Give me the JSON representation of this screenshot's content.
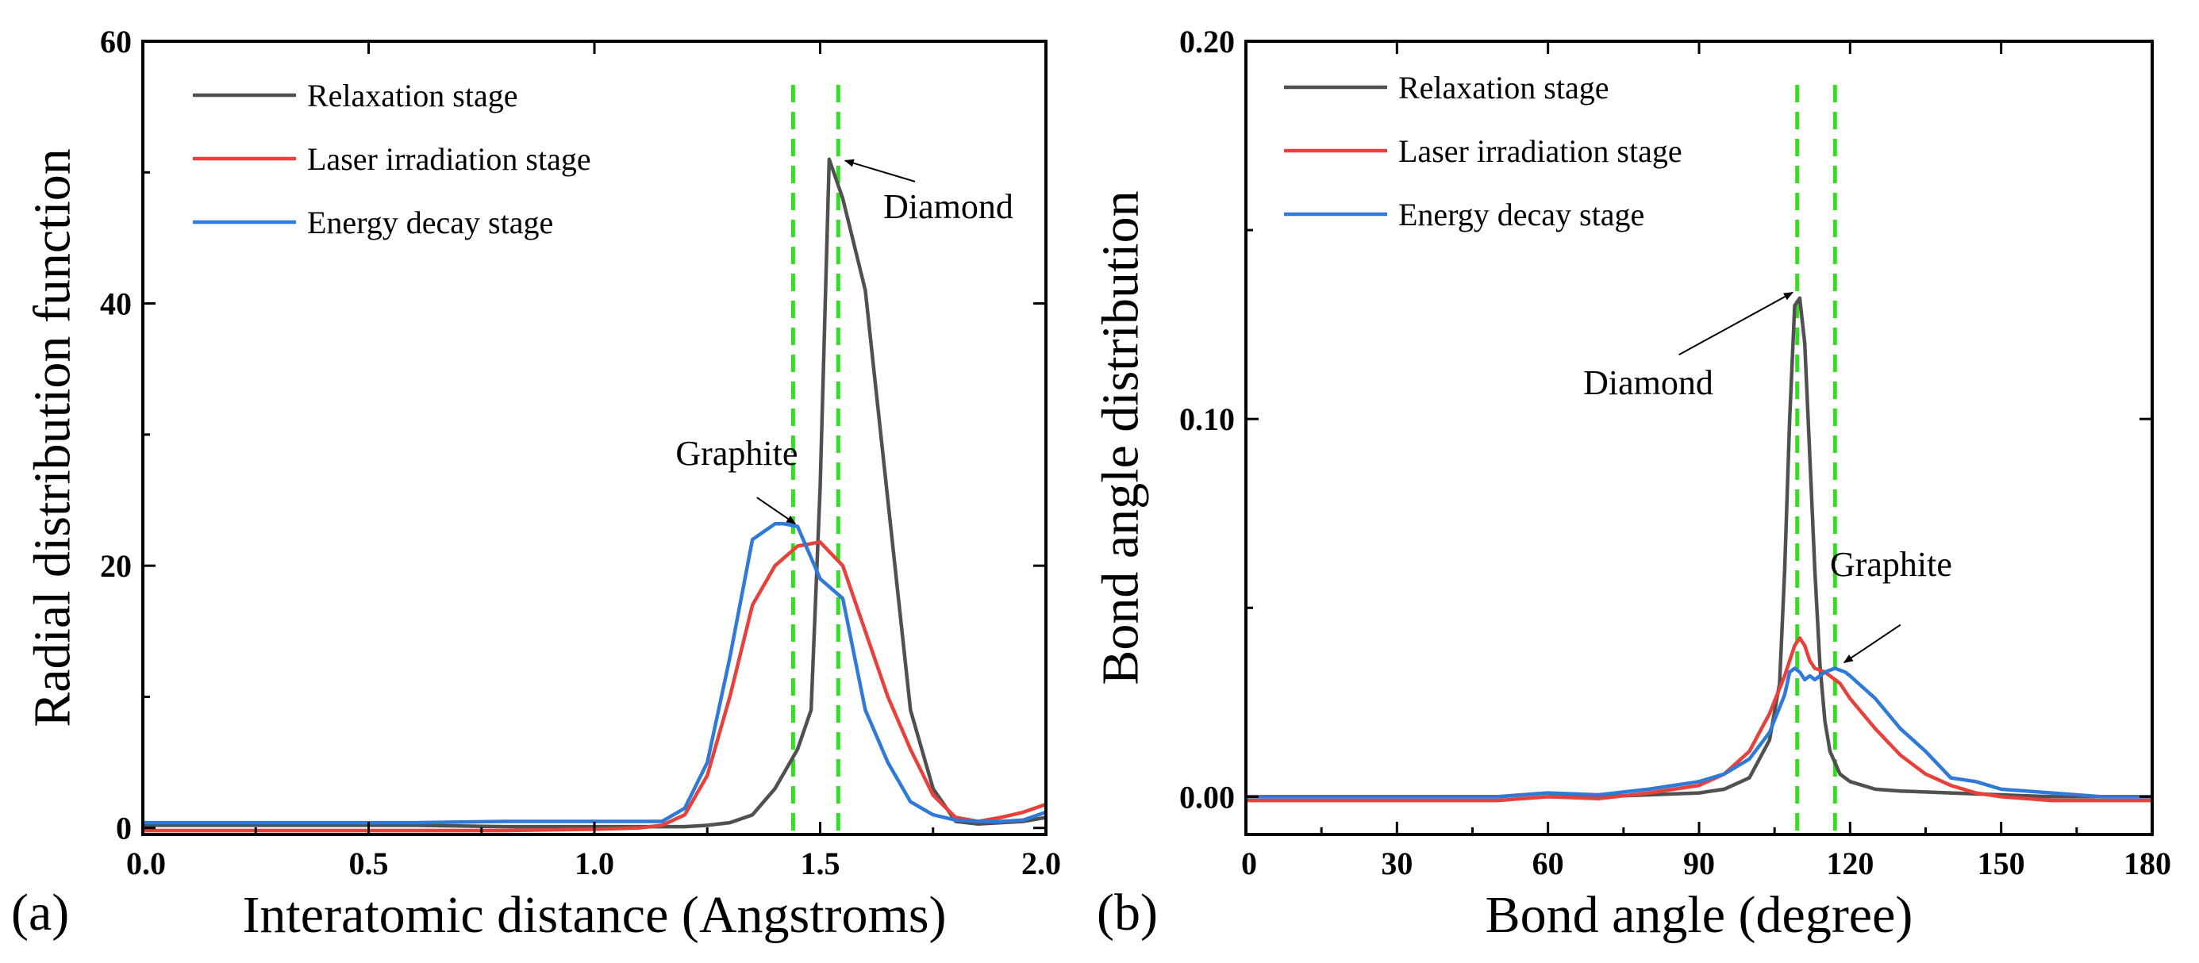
{
  "colors": {
    "relaxation": "#505050",
    "laser": "#e8403a",
    "energy": "#2f7ad8",
    "guide": "#33dd22",
    "arrow": "#000000"
  },
  "chart_data": [
    {
      "type": "line",
      "panel_label": "(a)",
      "xlabel": "Interatomic distance (Angstroms)",
      "ylabel": "Radial distribution function",
      "xlim": [
        0,
        2
      ],
      "ylim": [
        -0.5,
        60
      ],
      "xticks": [
        0.0,
        0.5,
        1.0,
        1.5,
        2.0
      ],
      "xtick_labels": [
        "0.0",
        "0.5",
        "1.0",
        "1.5",
        "2.0"
      ],
      "yticks": [
        0,
        20,
        40,
        60
      ],
      "ytick_labels": [
        "0",
        "20",
        "40",
        "60"
      ],
      "legend_position": "top-left",
      "guide_lines_x": [
        1.44,
        1.54
      ],
      "series": [
        {
          "name": "Relaxation stage",
          "color_key": "relaxation",
          "x": [
            0,
            0.2,
            0.4,
            0.6,
            0.8,
            1.0,
            1.1,
            1.2,
            1.25,
            1.3,
            1.35,
            1.4,
            1.45,
            1.48,
            1.5,
            1.52,
            1.55,
            1.6,
            1.65,
            1.7,
            1.75,
            1.8,
            1.85,
            1.9,
            1.95,
            2.0
          ],
          "y": [
            0.2,
            0.2,
            0.2,
            0.2,
            0.1,
            0.1,
            0.1,
            0.1,
            0.2,
            0.4,
            1.0,
            3.0,
            6.0,
            9.0,
            26.0,
            51.0,
            48.0,
            41.0,
            25.0,
            9.0,
            3.0,
            0.5,
            0.3,
            0.4,
            0.5,
            0.8
          ]
        },
        {
          "name": "Laser irradiation stage",
          "color_key": "laser",
          "x": [
            0,
            0.2,
            0.4,
            0.6,
            0.8,
            1.0,
            1.1,
            1.15,
            1.2,
            1.25,
            1.3,
            1.35,
            1.4,
            1.45,
            1.5,
            1.55,
            1.6,
            1.65,
            1.7,
            1.75,
            1.8,
            1.85,
            1.9,
            1.95,
            2.0
          ],
          "y": [
            -0.2,
            -0.2,
            -0.2,
            -0.2,
            -0.2,
            -0.1,
            0,
            0.2,
            1.0,
            4.0,
            10.0,
            17.0,
            20.0,
            21.5,
            21.8,
            20.0,
            15.0,
            10.0,
            6.0,
            2.5,
            0.8,
            0.5,
            0.8,
            1.2,
            1.8
          ]
        },
        {
          "name": "Energy decay stage",
          "color_key": "energy",
          "x": [
            0,
            0.2,
            0.4,
            0.6,
            0.8,
            1.0,
            1.1,
            1.15,
            1.2,
            1.25,
            1.3,
            1.35,
            1.4,
            1.42,
            1.45,
            1.5,
            1.55,
            1.6,
            1.65,
            1.7,
            1.75,
            1.8,
            1.85,
            1.9,
            1.95,
            2.0
          ],
          "y": [
            0.4,
            0.4,
            0.4,
            0.4,
            0.5,
            0.5,
            0.5,
            0.5,
            1.5,
            5.0,
            13.0,
            22.0,
            23.2,
            23.2,
            23.0,
            19.0,
            17.5,
            9.0,
            5.0,
            2.0,
            1.0,
            0.6,
            0.5,
            0.5,
            0.6,
            1.2
          ]
        }
      ],
      "annotations": [
        {
          "text": "Diamond",
          "text_x": 1.64,
          "text_y": 46.5,
          "arrow_from": [
            1.71,
            49.3
          ],
          "arrow_to": [
            1.555,
            50.9
          ]
        },
        {
          "text": "Graphite",
          "text_x": 1.18,
          "text_y": 27.7,
          "arrow_from": [
            1.36,
            25.2
          ],
          "arrow_to": [
            1.445,
            23.2
          ]
        }
      ]
    },
    {
      "type": "line",
      "panel_label": "(b)",
      "xlabel": "Bond angle (degree)",
      "ylabel": "Bond angle distribution",
      "xlim": [
        0,
        180
      ],
      "ylim": [
        -0.01,
        0.2
      ],
      "xticks": [
        0,
        30,
        60,
        90,
        120,
        150,
        180
      ],
      "xtick_labels": [
        "0",
        "30",
        "60",
        "90",
        "120",
        "150",
        "180"
      ],
      "yticks": [
        0,
        0.1,
        0.2
      ],
      "ytick_labels": [
        "0.00",
        "0.10",
        "0.20"
      ],
      "legend_position": "top-left",
      "guide_lines_x": [
        109.5,
        117
      ],
      "series": [
        {
          "name": "Relaxation stage",
          "color_key": "relaxation",
          "x": [
            0,
            50,
            60,
            62,
            70,
            80,
            90,
            95,
            100,
            104,
            106,
            107,
            108,
            109,
            110,
            111,
            112,
            113,
            114,
            115,
            116,
            118,
            120,
            125,
            130,
            140,
            150,
            160,
            170,
            180
          ],
          "y": [
            0.0,
            0.0,
            0.001,
            0.0,
            0.0,
            0.0005,
            0.001,
            0.002,
            0.005,
            0.015,
            0.03,
            0.06,
            0.1,
            0.13,
            0.132,
            0.12,
            0.09,
            0.06,
            0.035,
            0.02,
            0.012,
            0.006,
            0.004,
            0.002,
            0.0015,
            0.001,
            0.0005,
            0.0,
            0.0,
            0.0
          ]
        },
        {
          "name": "Laser irradiation stage",
          "color_key": "laser",
          "x": [
            0,
            50,
            60,
            70,
            80,
            90,
            95,
            100,
            104,
            107,
            109,
            110,
            111,
            112,
            113,
            115,
            118,
            120,
            125,
            130,
            135,
            140,
            145,
            150,
            160,
            180
          ],
          "y": [
            -0.001,
            -0.001,
            0.0,
            -0.0005,
            0.001,
            0.003,
            0.006,
            0.012,
            0.022,
            0.032,
            0.04,
            0.042,
            0.04,
            0.036,
            0.034,
            0.033,
            0.03,
            0.026,
            0.018,
            0.011,
            0.006,
            0.003,
            0.001,
            0.0,
            -0.001,
            -0.001
          ]
        },
        {
          "name": "Energy decay stage",
          "color_key": "energy",
          "x": [
            0,
            50,
            60,
            70,
            80,
            90,
            95,
            100,
            104,
            107,
            108,
            109,
            110,
            111,
            112,
            113,
            115,
            117,
            119,
            120,
            125,
            130,
            135,
            140,
            145,
            150,
            160,
            170,
            180
          ],
          "y": [
            0.0,
            0.0,
            0.001,
            0.0005,
            0.002,
            0.004,
            0.006,
            0.01,
            0.017,
            0.027,
            0.033,
            0.034,
            0.033,
            0.031,
            0.032,
            0.031,
            0.033,
            0.034,
            0.033,
            0.032,
            0.026,
            0.018,
            0.012,
            0.005,
            0.004,
            0.002,
            0.001,
            0.0,
            0.0
          ]
        }
      ],
      "annotations": [
        {
          "text": "Diamond",
          "text_x": 67,
          "text_y": 0.1065,
          "arrow_from": [
            86,
            0.117
          ],
          "arrow_to": [
            108.6,
            0.1335
          ]
        },
        {
          "text": "Graphite",
          "text_x": 116,
          "text_y": 0.0585,
          "arrow_from": [
            130,
            0.0455
          ],
          "arrow_to": [
            118.8,
            0.0355
          ]
        }
      ]
    }
  ]
}
